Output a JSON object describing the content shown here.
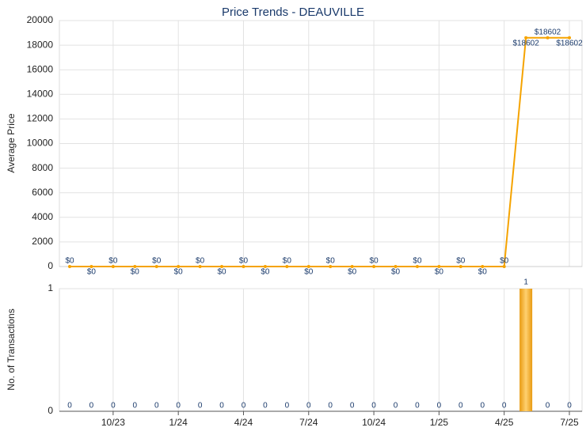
{
  "chart_data": [
    {
      "type": "line",
      "title": "Price Trends - DEAUVILLE",
      "y_label": "Average Price",
      "color": "#f5a300",
      "values": [
        0,
        0,
        0,
        0,
        0,
        0,
        0,
        0,
        0,
        0,
        0,
        0,
        0,
        0,
        0,
        0,
        0,
        0,
        0,
        0,
        0,
        18602,
        18602,
        18602
      ],
      "value_labels": [
        "$0",
        "$0",
        "$0",
        "$0",
        "$0",
        "$0",
        "$0",
        "$0",
        "$0",
        "$0",
        "$0",
        "$0",
        "$0",
        "$0",
        "$0",
        "$0",
        "$0",
        "$0",
        "$0",
        "$0",
        "$0",
        "$18602",
        "$18602",
        "$18602"
      ],
      "ylim": [
        0,
        20000
      ],
      "yticks": [
        0,
        2000,
        4000,
        6000,
        8000,
        10000,
        12000,
        14000,
        16000,
        18000,
        20000
      ],
      "grid": true
    },
    {
      "type": "bar",
      "y_label": "No. of Transactions",
      "color": "#f0a820",
      "categories": [
        null,
        null,
        "10/23",
        null,
        null,
        "1/24",
        null,
        null,
        "4/24",
        null,
        null,
        "7/24",
        null,
        null,
        "10/24",
        null,
        null,
        "1/25",
        null,
        null,
        "4/25",
        null,
        null,
        "7/25"
      ],
      "values": [
        0,
        0,
        0,
        0,
        0,
        0,
        0,
        0,
        0,
        0,
        0,
        0,
        0,
        0,
        0,
        0,
        0,
        0,
        0,
        0,
        0,
        1,
        0,
        0
      ],
      "ylim": [
        0,
        1
      ],
      "yticks": [
        0,
        1
      ],
      "grid": true
    }
  ]
}
